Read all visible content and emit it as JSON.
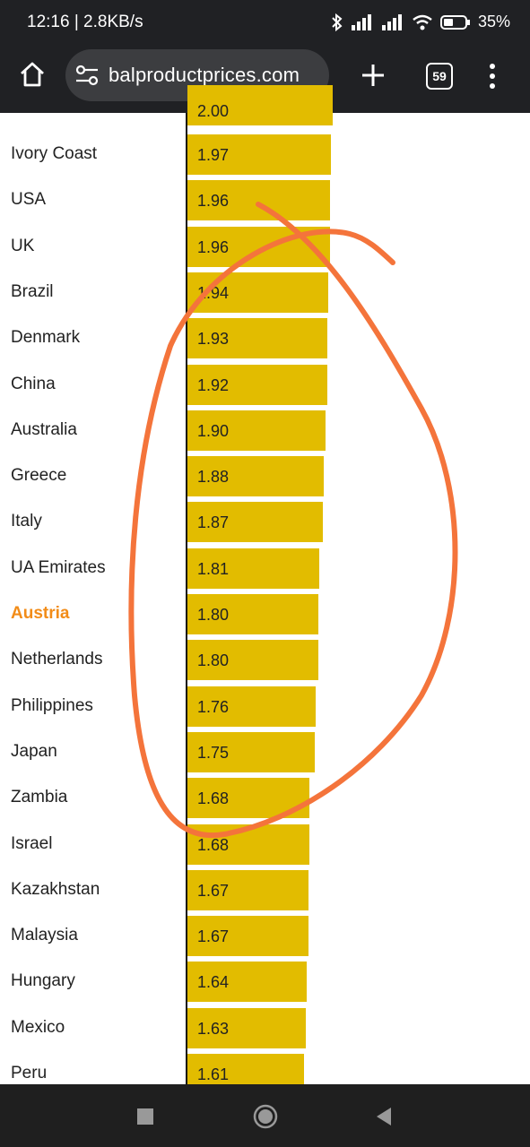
{
  "status_bar": {
    "time": "12:16 | 2.8KB/s",
    "battery": "35%",
    "icons": [
      "moon-icon",
      "bluetooth-icon",
      "signal-icon",
      "signal-icon",
      "wifi-icon",
      "battery-icon"
    ]
  },
  "browser": {
    "url": "balproductprices.com",
    "tab_count": "59",
    "icons": [
      "home-icon",
      "site-settings-icon",
      "new-tab-icon",
      "tabs-icon",
      "menu-icon"
    ]
  },
  "highlight": {
    "country": "Austria",
    "color": "#f28c18"
  },
  "bar_color": "#e2bc00",
  "annotation_color": "#f4743b",
  "partial_top_row": {
    "value": "2.00"
  },
  "chart_data": {
    "type": "bar",
    "orientation": "horizontal",
    "categories": [
      "Ivory Coast",
      "USA",
      "UK",
      "Brazil",
      "Denmark",
      "China",
      "Australia",
      "Greece",
      "Italy",
      "UA Emirates",
      "Austria",
      "Netherlands",
      "Philippines",
      "Japan",
      "Zambia",
      "Israel",
      "Kazakhstan",
      "Malaysia",
      "Hungary",
      "Mexico",
      "Peru"
    ],
    "values": [
      1.97,
      1.96,
      1.96,
      1.94,
      1.93,
      1.92,
      1.9,
      1.88,
      1.87,
      1.81,
      1.8,
      1.8,
      1.76,
      1.75,
      1.68,
      1.68,
      1.67,
      1.67,
      1.64,
      1.63,
      1.61
    ],
    "value_labels": [
      "1.97",
      "1.96",
      "1.96",
      "1.94",
      "1.93",
      "1.92",
      "1.90",
      "1.88",
      "1.87",
      "1.81",
      "1.80",
      "1.80",
      "1.76",
      "1.75",
      "1.68",
      "1.68",
      "1.67",
      "1.67",
      "1.64",
      "1.63",
      "1.61"
    ]
  }
}
